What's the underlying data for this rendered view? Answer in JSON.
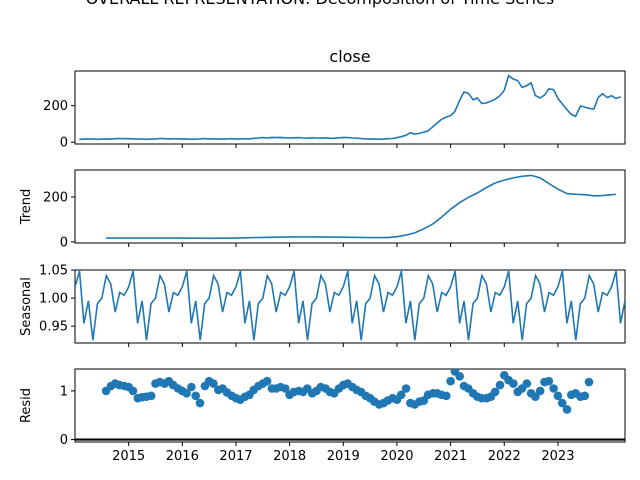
{
  "chart_data": {
    "type": "line",
    "figure_title": "OVERALL REPRESENTATION: Decomposition of Time Series",
    "panel_title": "close",
    "x_ticks": [
      "2015",
      "2016",
      "2017",
      "2018",
      "2019",
      "2020",
      "2021",
      "2022",
      "2023"
    ],
    "line_color": "#1f77b4",
    "panels": [
      {
        "name": "close",
        "ylabel": "",
        "kind": "line",
        "yticks": [
          0,
          200
        ],
        "ylim": [
          -10,
          390
        ],
        "points": [
          [
            2014.08,
            15
          ],
          [
            2014.17,
            18
          ],
          [
            2014.25,
            17
          ],
          [
            2014.33,
            18
          ],
          [
            2014.42,
            16
          ],
          [
            2014.5,
            17
          ],
          [
            2014.58,
            18
          ],
          [
            2014.67,
            17
          ],
          [
            2014.75,
            19
          ],
          [
            2014.83,
            20
          ],
          [
            2014.92,
            19
          ],
          [
            2015.0,
            19
          ],
          [
            2015.08,
            18
          ],
          [
            2015.17,
            17
          ],
          [
            2015.25,
            17
          ],
          [
            2015.33,
            16
          ],
          [
            2015.42,
            17
          ],
          [
            2015.5,
            18
          ],
          [
            2015.58,
            20
          ],
          [
            2015.67,
            19
          ],
          [
            2015.75,
            18
          ],
          [
            2015.83,
            19
          ],
          [
            2015.92,
            18
          ],
          [
            2016.0,
            17
          ],
          [
            2016.08,
            18
          ],
          [
            2016.17,
            16
          ],
          [
            2016.25,
            17
          ],
          [
            2016.33,
            18
          ],
          [
            2016.42,
            20
          ],
          [
            2016.5,
            17
          ],
          [
            2016.58,
            18
          ],
          [
            2016.67,
            18
          ],
          [
            2016.75,
            17
          ],
          [
            2016.83,
            18
          ],
          [
            2016.92,
            19
          ],
          [
            2017.0,
            17
          ],
          [
            2017.08,
            18
          ],
          [
            2017.17,
            19
          ],
          [
            2017.25,
            18
          ],
          [
            2017.33,
            21
          ],
          [
            2017.42,
            23
          ],
          [
            2017.5,
            25
          ],
          [
            2017.58,
            23
          ],
          [
            2017.67,
            26
          ],
          [
            2017.75,
            25
          ],
          [
            2017.83,
            26
          ],
          [
            2017.92,
            24
          ],
          [
            2018.0,
            23
          ],
          [
            2018.08,
            24
          ],
          [
            2018.17,
            25
          ],
          [
            2018.25,
            23
          ],
          [
            2018.33,
            22
          ],
          [
            2018.42,
            24
          ],
          [
            2018.5,
            23
          ],
          [
            2018.58,
            22
          ],
          [
            2018.67,
            24
          ],
          [
            2018.75,
            21
          ],
          [
            2018.83,
            22
          ],
          [
            2018.92,
            24
          ],
          [
            2019.0,
            26
          ],
          [
            2019.08,
            25
          ],
          [
            2019.17,
            23
          ],
          [
            2019.25,
            22
          ],
          [
            2019.33,
            20
          ],
          [
            2019.42,
            18
          ],
          [
            2019.5,
            17
          ],
          [
            2019.58,
            18
          ],
          [
            2019.67,
            16
          ],
          [
            2019.75,
            17
          ],
          [
            2019.83,
            19
          ],
          [
            2019.92,
            20
          ],
          [
            2020.0,
            25
          ],
          [
            2020.08,
            30
          ],
          [
            2020.17,
            38
          ],
          [
            2020.25,
            52
          ],
          [
            2020.33,
            45
          ],
          [
            2020.42,
            48
          ],
          [
            2020.5,
            55
          ],
          [
            2020.58,
            62
          ],
          [
            2020.67,
            85
          ],
          [
            2020.75,
            105
          ],
          [
            2020.83,
            125
          ],
          [
            2020.92,
            138
          ],
          [
            2021.0,
            145
          ],
          [
            2021.08,
            168
          ],
          [
            2021.17,
            230
          ],
          [
            2021.25,
            275
          ],
          [
            2021.33,
            268
          ],
          [
            2021.42,
            232
          ],
          [
            2021.5,
            242
          ],
          [
            2021.58,
            212
          ],
          [
            2021.67,
            215
          ],
          [
            2021.75,
            225
          ],
          [
            2021.83,
            235
          ],
          [
            2021.92,
            255
          ],
          [
            2022.0,
            285
          ],
          [
            2022.08,
            365
          ],
          [
            2022.17,
            345
          ],
          [
            2022.25,
            338
          ],
          [
            2022.33,
            300
          ],
          [
            2022.42,
            310
          ],
          [
            2022.5,
            325
          ],
          [
            2022.58,
            255
          ],
          [
            2022.67,
            242
          ],
          [
            2022.75,
            258
          ],
          [
            2022.83,
            292
          ],
          [
            2022.92,
            288
          ],
          [
            2023.0,
            240
          ],
          [
            2023.08,
            210
          ],
          [
            2023.17,
            178
          ],
          [
            2023.25,
            152
          ],
          [
            2023.33,
            142
          ],
          [
            2023.42,
            198
          ],
          [
            2023.5,
            192
          ],
          [
            2023.58,
            185
          ],
          [
            2023.67,
            182
          ],
          [
            2023.75,
            245
          ],
          [
            2023.83,
            265
          ],
          [
            2023.92,
            245
          ],
          [
            2024.0,
            255
          ],
          [
            2024.08,
            240
          ],
          [
            2024.17,
            248
          ]
        ]
      },
      {
        "name": "trend",
        "ylabel": "Trend",
        "kind": "line",
        "yticks": [
          0,
          200
        ],
        "ylim": [
          -5,
          320
        ],
        "points": [
          [
            2014.58,
            17
          ],
          [
            2015.0,
            17
          ],
          [
            2015.5,
            17
          ],
          [
            2016.0,
            17
          ],
          [
            2016.5,
            16
          ],
          [
            2017.0,
            17
          ],
          [
            2017.5,
            20
          ],
          [
            2018.0,
            22
          ],
          [
            2018.5,
            22
          ],
          [
            2019.0,
            21
          ],
          [
            2019.5,
            19
          ],
          [
            2019.83,
            19
          ],
          [
            2020.0,
            23
          ],
          [
            2020.17,
            30
          ],
          [
            2020.33,
            40
          ],
          [
            2020.5,
            58
          ],
          [
            2020.67,
            80
          ],
          [
            2020.83,
            110
          ],
          [
            2021.0,
            145
          ],
          [
            2021.17,
            175
          ],
          [
            2021.33,
            198
          ],
          [
            2021.5,
            218
          ],
          [
            2021.67,
            242
          ],
          [
            2021.83,
            262
          ],
          [
            2022.0,
            275
          ],
          [
            2022.17,
            285
          ],
          [
            2022.33,
            292
          ],
          [
            2022.5,
            296
          ],
          [
            2022.67,
            285
          ],
          [
            2022.83,
            260
          ],
          [
            2023.0,
            235
          ],
          [
            2023.17,
            215
          ],
          [
            2023.33,
            212
          ],
          [
            2023.5,
            210
          ],
          [
            2023.67,
            205
          ],
          [
            2023.83,
            206
          ],
          [
            2024.0,
            210
          ],
          [
            2024.08,
            212
          ]
        ]
      },
      {
        "name": "seasonal",
        "ylabel": "Seasonal",
        "kind": "line",
        "yticks": [
          "0.95",
          "1.00",
          "1.05"
        ],
        "ylim": [
          0.92,
          1.05
        ],
        "cycle_start": 2014.0,
        "cycle_end": 2024.25,
        "cycle": [
          1.02,
          1.048,
          0.955,
          0.995,
          0.925,
          0.99,
          1.0,
          1.04,
          1.025,
          0.975,
          1.01,
          1.005
        ]
      },
      {
        "name": "resid",
        "ylabel": "Resid",
        "kind": "scatter",
        "yticks": [
          0,
          1
        ],
        "ylim": [
          -0.05,
          1.45
        ],
        "points": [
          [
            2014.58,
            1.0
          ],
          [
            2014.67,
            1.1
          ],
          [
            2014.75,
            1.15
          ],
          [
            2014.83,
            1.12
          ],
          [
            2014.92,
            1.1
          ],
          [
            2015.0,
            1.08
          ],
          [
            2015.08,
            1.0
          ],
          [
            2015.17,
            0.85
          ],
          [
            2015.25,
            0.87
          ],
          [
            2015.33,
            0.88
          ],
          [
            2015.42,
            0.9
          ],
          [
            2015.5,
            1.15
          ],
          [
            2015.58,
            1.18
          ],
          [
            2015.67,
            1.15
          ],
          [
            2015.75,
            1.2
          ],
          [
            2015.83,
            1.12
          ],
          [
            2015.92,
            1.05
          ],
          [
            2016.0,
            1.0
          ],
          [
            2016.08,
            0.95
          ],
          [
            2016.17,
            1.08
          ],
          [
            2016.25,
            0.9
          ],
          [
            2016.33,
            0.75
          ],
          [
            2016.42,
            1.1
          ],
          [
            2016.5,
            1.2
          ],
          [
            2016.58,
            1.15
          ],
          [
            2016.67,
            1.02
          ],
          [
            2016.75,
            1.05
          ],
          [
            2016.83,
            0.97
          ],
          [
            2016.92,
            0.9
          ],
          [
            2017.0,
            0.85
          ],
          [
            2017.08,
            0.82
          ],
          [
            2017.17,
            0.88
          ],
          [
            2017.25,
            0.92
          ],
          [
            2017.33,
            1.02
          ],
          [
            2017.42,
            1.1
          ],
          [
            2017.5,
            1.15
          ],
          [
            2017.58,
            1.2
          ],
          [
            2017.67,
            1.05
          ],
          [
            2017.75,
            1.05
          ],
          [
            2017.83,
            1.08
          ],
          [
            2017.92,
            1.05
          ],
          [
            2018.0,
            0.92
          ],
          [
            2018.08,
            0.98
          ],
          [
            2018.17,
            1.0
          ],
          [
            2018.25,
            0.98
          ],
          [
            2018.33,
            1.05
          ],
          [
            2018.42,
            0.95
          ],
          [
            2018.5,
            1.0
          ],
          [
            2018.58,
            1.08
          ],
          [
            2018.67,
            1.05
          ],
          [
            2018.75,
            0.98
          ],
          [
            2018.83,
            0.95
          ],
          [
            2018.92,
            1.05
          ],
          [
            2019.0,
            1.12
          ],
          [
            2019.08,
            1.15
          ],
          [
            2019.17,
            1.08
          ],
          [
            2019.25,
            1.02
          ],
          [
            2019.33,
            0.98
          ],
          [
            2019.42,
            0.9
          ],
          [
            2019.5,
            0.85
          ],
          [
            2019.58,
            0.78
          ],
          [
            2019.67,
            0.72
          ],
          [
            2019.75,
            0.75
          ],
          [
            2019.83,
            0.8
          ],
          [
            2019.92,
            0.85
          ],
          [
            2020.0,
            0.82
          ],
          [
            2020.08,
            0.92
          ],
          [
            2020.17,
            1.05
          ],
          [
            2020.25,
            0.75
          ],
          [
            2020.33,
            0.72
          ],
          [
            2020.42,
            0.78
          ],
          [
            2020.5,
            0.8
          ],
          [
            2020.58,
            0.92
          ],
          [
            2020.67,
            0.95
          ],
          [
            2020.75,
            0.95
          ],
          [
            2020.83,
            0.92
          ],
          [
            2020.92,
            0.9
          ],
          [
            2021.0,
            1.2
          ],
          [
            2021.08,
            1.4
          ],
          [
            2021.17,
            1.3
          ],
          [
            2021.25,
            1.1
          ],
          [
            2021.33,
            1.05
          ],
          [
            2021.42,
            0.95
          ],
          [
            2021.5,
            0.88
          ],
          [
            2021.58,
            0.85
          ],
          [
            2021.67,
            0.85
          ],
          [
            2021.75,
            0.88
          ],
          [
            2021.83,
            0.98
          ],
          [
            2021.92,
            1.12
          ],
          [
            2022.0,
            1.32
          ],
          [
            2022.08,
            1.22
          ],
          [
            2022.17,
            1.15
          ],
          [
            2022.25,
            0.98
          ],
          [
            2022.33,
            1.05
          ],
          [
            2022.42,
            1.15
          ],
          [
            2022.5,
            0.95
          ],
          [
            2022.58,
            0.88
          ],
          [
            2022.67,
            1.0
          ],
          [
            2022.75,
            1.18
          ],
          [
            2022.83,
            1.2
          ],
          [
            2022.92,
            1.05
          ],
          [
            2023.0,
            0.9
          ],
          [
            2023.08,
            0.75
          ],
          [
            2023.17,
            0.62
          ],
          [
            2023.25,
            0.92
          ],
          [
            2023.33,
            0.95
          ],
          [
            2023.42,
            0.88
          ],
          [
            2023.5,
            0.9
          ],
          [
            2023.58,
            1.18
          ]
        ]
      }
    ]
  }
}
